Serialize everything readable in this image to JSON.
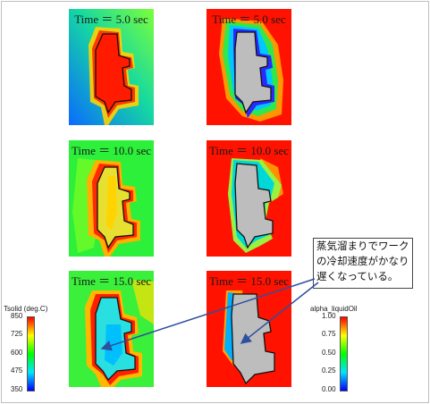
{
  "panels": [
    {
      "time_label": "Time ＝ 5.0 sec",
      "field": "Tsolid"
    },
    {
      "time_label": "Time ＝ 5.0 sec",
      "field": "alpha_liquidOil"
    },
    {
      "time_label": "Time ＝ 10.0 sec",
      "field": "Tsolid"
    },
    {
      "time_label": "Time ＝ 10.0 sec",
      "field": "alpha_liquidOil"
    },
    {
      "time_label": "Time ＝ 15.0 sec",
      "field": "Tsolid"
    },
    {
      "time_label": "Time ＝ 15.0 sec",
      "field": "alpha_liquidOil"
    }
  ],
  "colorbar_left": {
    "title": "Tsolid (deg.C)",
    "ticks": [
      "850",
      "725",
      "600",
      "475",
      "350"
    ],
    "colors": [
      "#ff0000",
      "#ffff00",
      "#00ff00",
      "#00e5ff",
      "#0000ff"
    ]
  },
  "colorbar_right": {
    "title": "alpha_liquidOil",
    "ticks": [
      "1.00",
      "0.75",
      "0.50",
      "0.25",
      "0.00"
    ],
    "colors": [
      "#ff0000",
      "#ffff00",
      "#00ff00",
      "#00e5ff",
      "#0000ff"
    ]
  },
  "callout": {
    "text": "蒸気溜まりでワークの冷却速度がかなり遅くなっている。"
  },
  "colors": {
    "workpiece_gray": "#bdbdbd",
    "arrow": "#2f4f9f"
  }
}
